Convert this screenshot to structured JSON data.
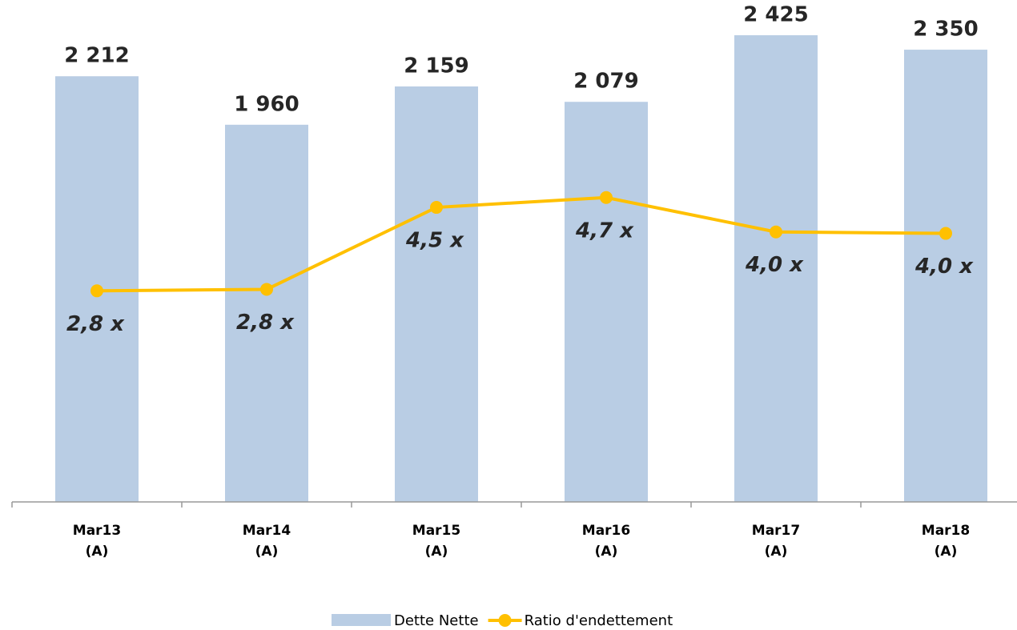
{
  "chart_data": {
    "type": "bar-line",
    "categories": [
      [
        "Mar13",
        "(A)"
      ],
      [
        "Mar14",
        "(A)"
      ],
      [
        "Mar15",
        "(A)"
      ],
      [
        "Mar16",
        "(A)"
      ],
      [
        "Mar17",
        "(A)"
      ],
      [
        "Mar18",
        "(A)"
      ]
    ],
    "series": [
      {
        "name": "Dette Nette",
        "type": "bar",
        "color": "#b9cde4",
        "values": [
          2212,
          1960,
          2159,
          2079,
          2425,
          2350
        ],
        "value_labels": [
          "2 212",
          "1 960",
          "2 159",
          "2 079",
          "2 425",
          "2 350"
        ]
      },
      {
        "name": "Ratio d'endettement",
        "type": "line",
        "axis": "y2",
        "color": "#ffc000",
        "values": [
          2.8,
          2.83,
          4.5,
          4.7,
          4.0,
          3.97
        ],
        "value_labels": [
          "2,8 x",
          "2,8 x",
          "4,5 x",
          "4,7 x",
          "4,0 x",
          "4,0 x"
        ]
      }
    ],
    "ylim": [
      0,
      2500
    ],
    "y2lim": [
      -1.5,
      8.3
    ],
    "legend": "bottom"
  }
}
